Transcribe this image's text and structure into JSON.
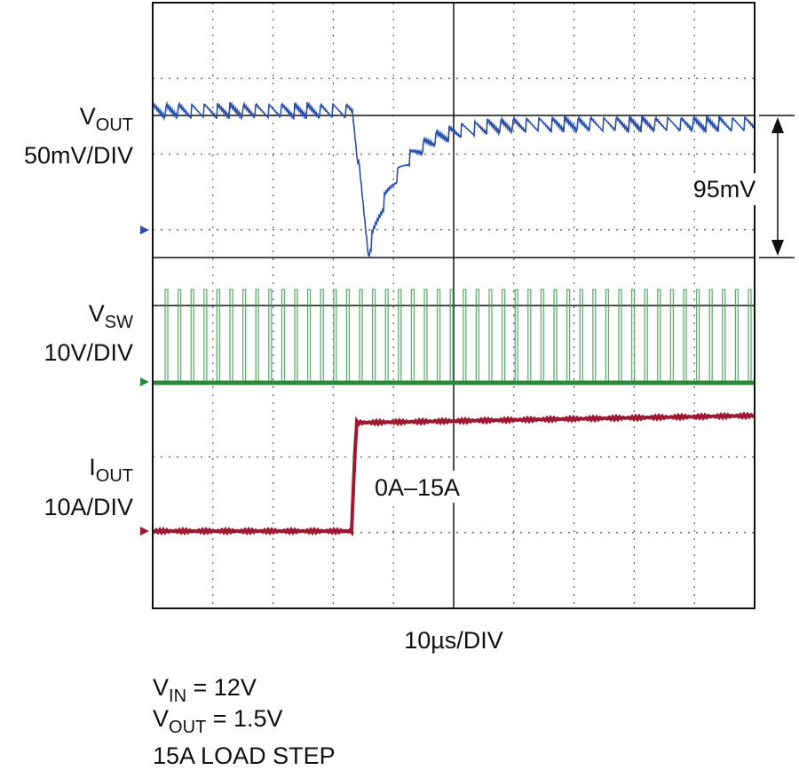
{
  "channels": [
    {
      "name": {
        "main": "V",
        "sub": "OUT"
      },
      "scale": "50mV/DIV"
    },
    {
      "name": {
        "main": "V",
        "sub": "SW"
      },
      "scale": "10V/DIV"
    },
    {
      "name": {
        "main": "I",
        "sub": "OUT"
      },
      "scale": "10A/DIV"
    }
  ],
  "annotations": {
    "delta": "95mV",
    "step": "0A–15A"
  },
  "timebase": "10µs/DIV",
  "conditions": [
    {
      "main": "V",
      "sub": "IN",
      "rest": " = 12V"
    },
    {
      "main": "V",
      "sub": "OUT",
      "rest": " = 1.5V"
    },
    {
      "text": "15A LOAD STEP"
    }
  ]
}
